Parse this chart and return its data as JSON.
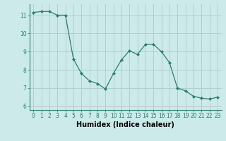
{
  "x": [
    0,
    1,
    2,
    3,
    4,
    5,
    6,
    7,
    8,
    9,
    10,
    11,
    12,
    13,
    14,
    15,
    16,
    17,
    18,
    19,
    20,
    21,
    22,
    23
  ],
  "y": [
    11.15,
    11.2,
    11.2,
    11.0,
    11.0,
    8.6,
    7.8,
    7.4,
    7.25,
    6.95,
    7.8,
    8.55,
    9.05,
    8.85,
    9.4,
    9.4,
    9.0,
    8.4,
    7.0,
    6.85,
    6.55,
    6.45,
    6.4,
    6.5
  ],
  "line_color": "#2e7d6e",
  "marker": "D",
  "marker_size": 2.0,
  "background_color": "#cceaea",
  "grid_color": "#aacccc",
  "xlabel": "Humidex (Indice chaleur)",
  "xlim": [
    -0.5,
    23.5
  ],
  "ylim": [
    5.8,
    11.6
  ],
  "xticks": [
    0,
    1,
    2,
    3,
    4,
    5,
    6,
    7,
    8,
    9,
    10,
    11,
    12,
    13,
    14,
    15,
    16,
    17,
    18,
    19,
    20,
    21,
    22,
    23
  ],
  "yticks": [
    6,
    7,
    8,
    9,
    10,
    11
  ],
  "xtick_labels": [
    "0",
    "1",
    "2",
    "3",
    "4",
    "5",
    "6",
    "7",
    "8",
    "9",
    "10",
    "11",
    "12",
    "13",
    "14",
    "15",
    "16",
    "17",
    "18",
    "19",
    "20",
    "21",
    "22",
    "23"
  ],
  "font_size_ticks": 5.5,
  "font_size_label": 7.0,
  "linewidth": 0.9
}
